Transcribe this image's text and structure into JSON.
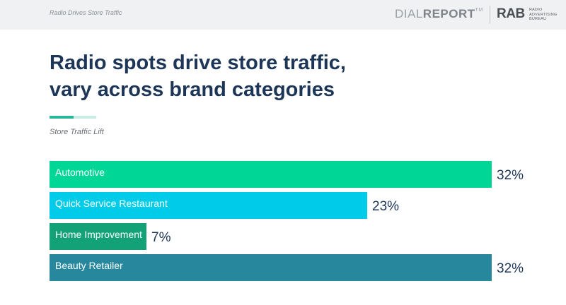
{
  "header": {
    "report_label": "Radio Drives Store Traffic",
    "logo_dial": "DIAL",
    "logo_report": "REPORT",
    "logo_tm": "TM",
    "logo_rab": "RAB",
    "logo_rab_line1": "RADIO",
    "logo_rab_line2": "ADVERTISING",
    "logo_rab_line3": "BUREAU"
  },
  "title_line1": "Radio spots drive store traffic,",
  "title_line2": "vary across brand categories",
  "subtitle": "Store Traffic Lift",
  "chart_data": {
    "type": "bar",
    "orientation": "horizontal",
    "title": "Radio spots drive store traffic, vary across brand categories",
    "subtitle": "Store Traffic Lift",
    "categories": [
      "Automotive",
      "Quick Service Restaurant",
      "Home Improvement",
      "Beauty Retailer"
    ],
    "values": [
      32,
      23,
      7,
      32
    ],
    "value_labels": [
      "32%",
      "23%",
      "7%",
      "32%"
    ],
    "colors": [
      "#00d796",
      "#00ccea",
      "#13a177",
      "#27889d"
    ],
    "xlim": [
      0,
      32
    ],
    "grid": false,
    "legend": "none"
  }
}
